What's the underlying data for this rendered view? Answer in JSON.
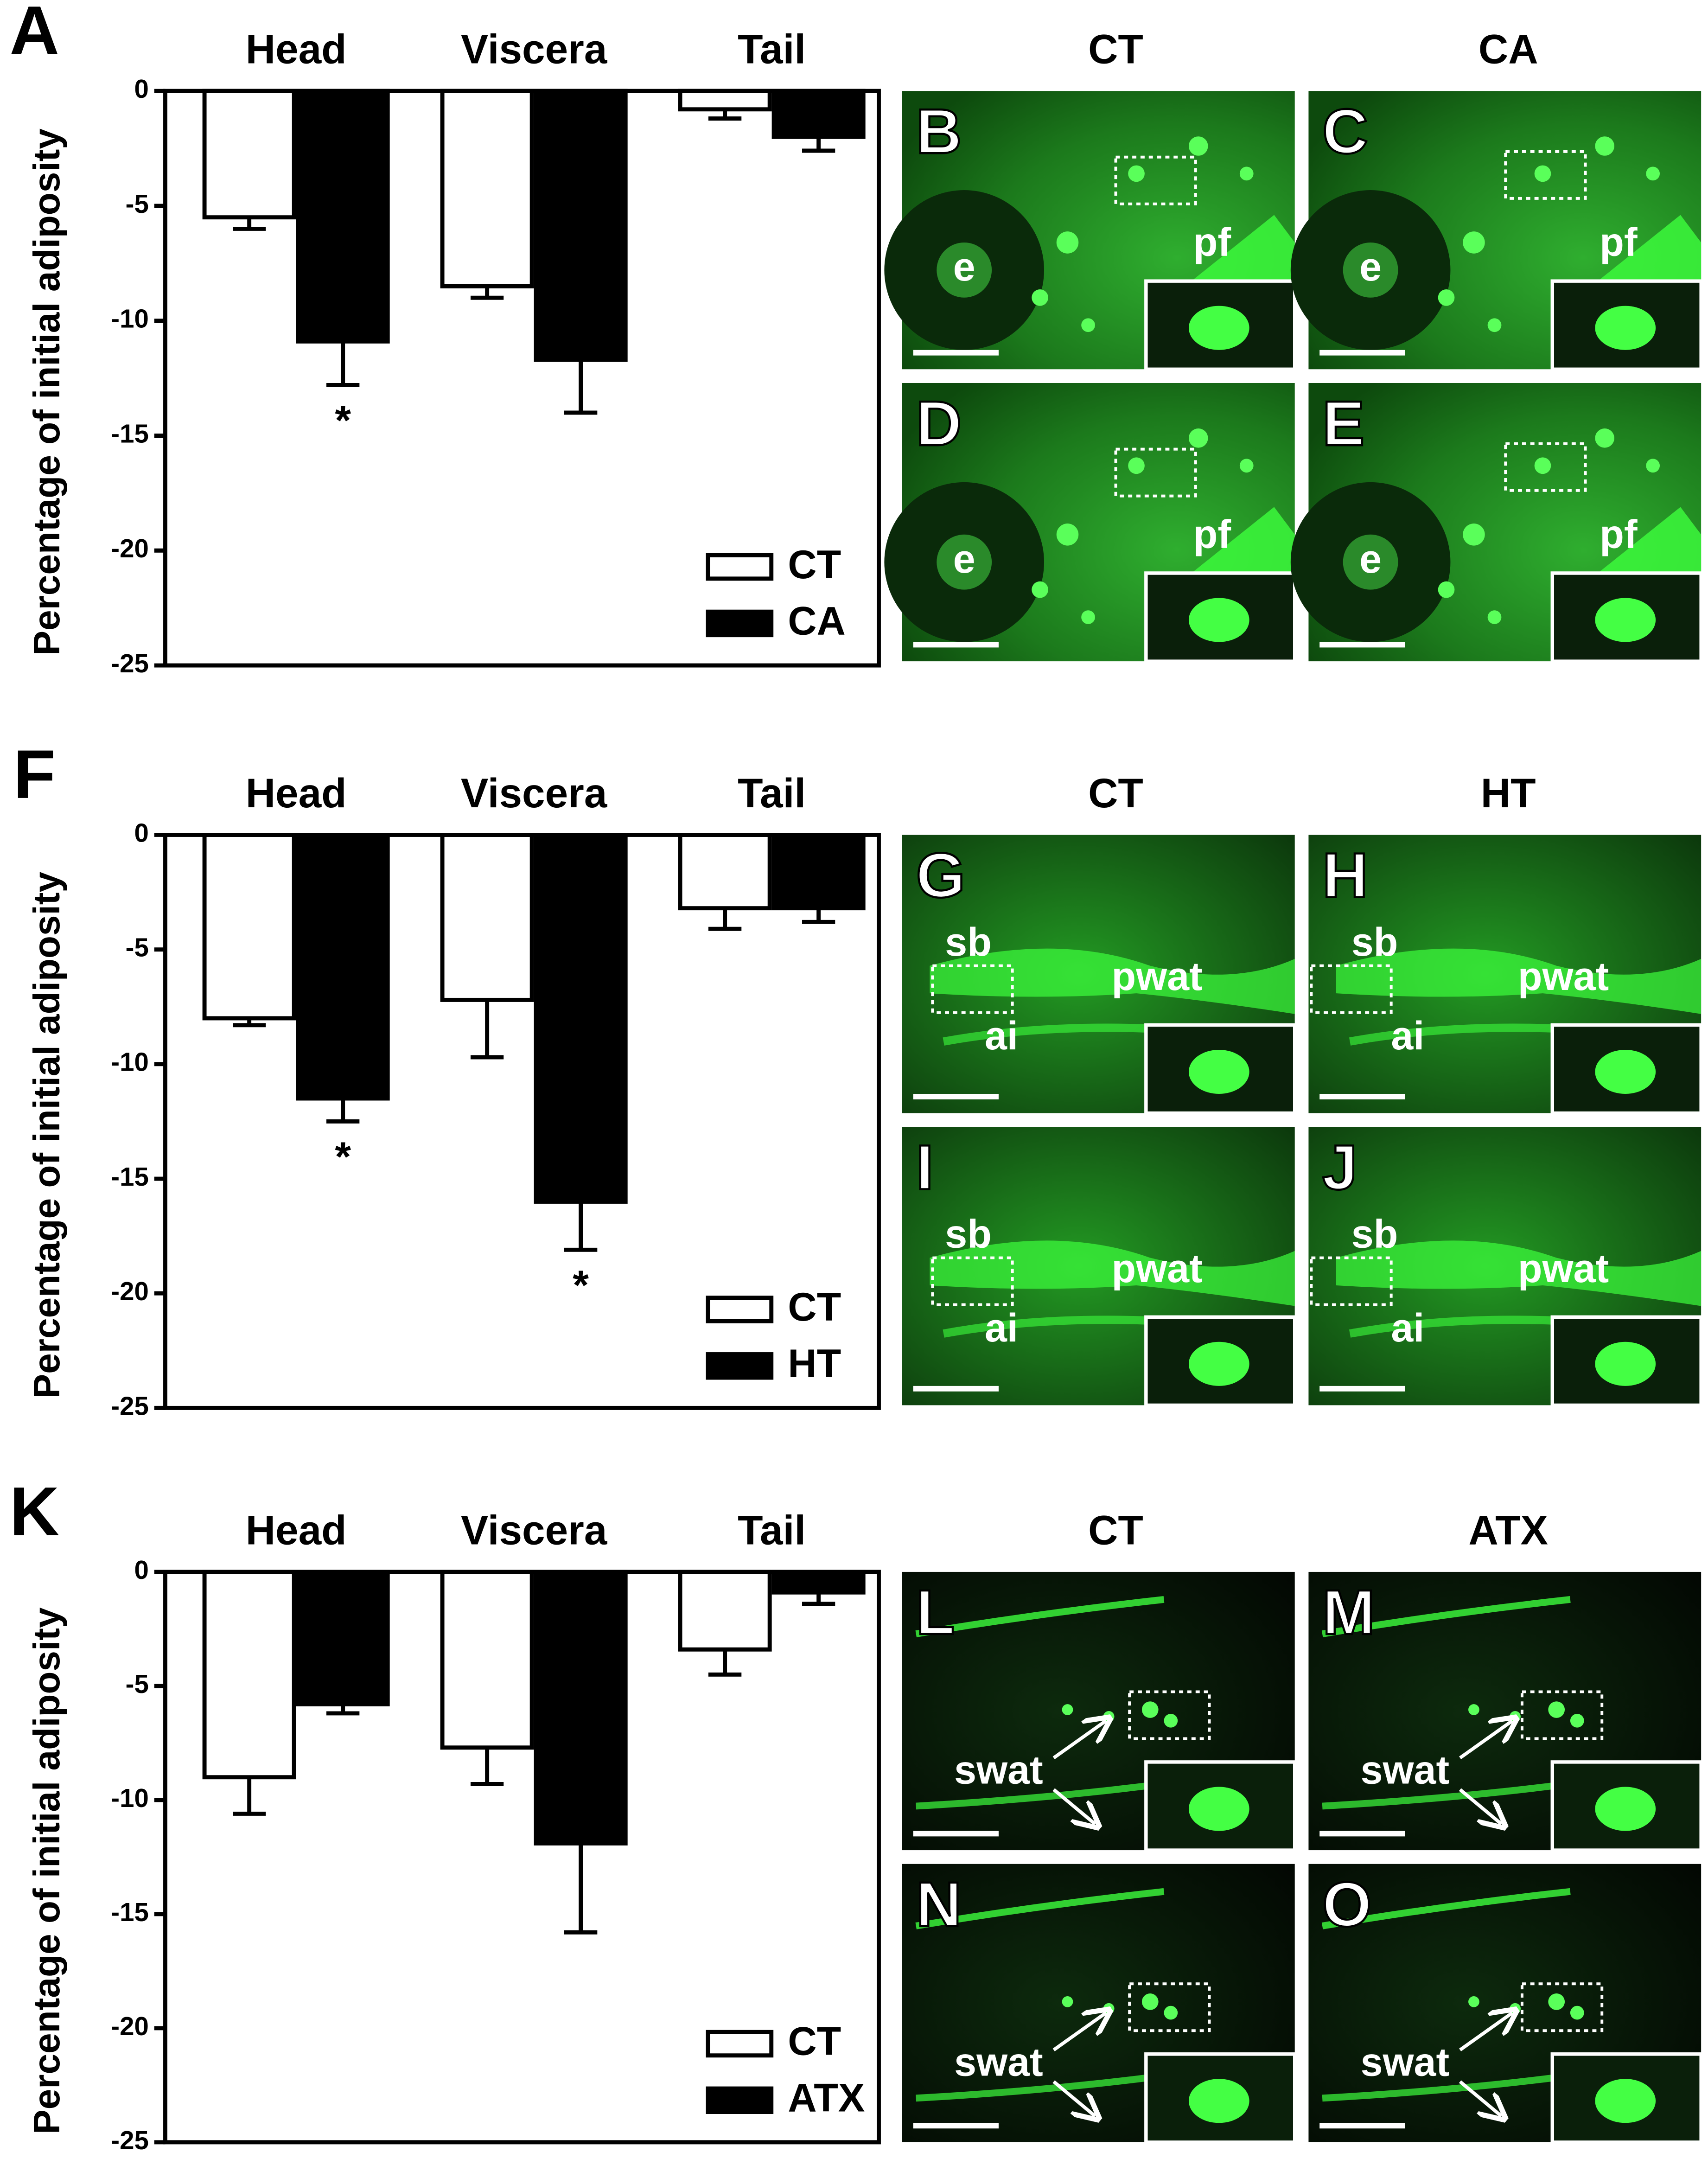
{
  "chart_data": [
    {
      "type": "bar",
      "panel": "A",
      "y_label": "Percentage of initial adiposity",
      "categories": [
        "Head",
        "Viscera",
        "Tail"
      ],
      "ylim": [
        -25,
        0
      ],
      "yticks": [
        0,
        -5,
        -10,
        -15,
        -20,
        -25
      ],
      "series": [
        {
          "name": "CT",
          "color": "#ffffff",
          "values": [
            -5.5,
            -8.5,
            -0.8
          ],
          "errors": [
            0.5,
            0.5,
            0.4
          ],
          "markers": [
            null,
            null,
            null
          ]
        },
        {
          "name": "CA",
          "color": "#000000",
          "values": [
            -10.9,
            -11.7,
            -2.0
          ],
          "errors": [
            1.9,
            2.3,
            0.6
          ],
          "markers": [
            "*",
            null,
            null
          ]
        }
      ]
    },
    {
      "type": "bar",
      "panel": "F",
      "y_label": "Percentage of initial adiposity",
      "categories": [
        "Head",
        "Viscera",
        "Tail"
      ],
      "ylim": [
        -25,
        0
      ],
      "yticks": [
        0,
        -5,
        -10,
        -15,
        -20,
        -25
      ],
      "series": [
        {
          "name": "CT",
          "color": "#ffffff",
          "values": [
            -8.0,
            -7.2,
            -3.2
          ],
          "errors": [
            0.3,
            2.5,
            0.9
          ],
          "markers": [
            null,
            null,
            null
          ]
        },
        {
          "name": "HT",
          "color": "#000000",
          "values": [
            -11.5,
            -16.0,
            -3.2
          ],
          "errors": [
            1.0,
            2.1,
            0.6
          ],
          "markers": [
            "*",
            "*",
            null
          ]
        }
      ]
    },
    {
      "type": "bar",
      "panel": "K",
      "y_label": "Percentage of initial adiposity",
      "categories": [
        "Head",
        "Viscera",
        "Tail"
      ],
      "ylim": [
        -25,
        0
      ],
      "yticks": [
        0,
        -5,
        -10,
        -15,
        -20,
        -25
      ],
      "series": [
        {
          "name": "CT",
          "color": "#ffffff",
          "values": [
            -9.0,
            -7.7,
            -3.4
          ],
          "errors": [
            1.6,
            1.6,
            1.1
          ],
          "markers": [
            null,
            null,
            null
          ]
        },
        {
          "name": "ATX",
          "color": "#000000",
          "values": [
            -5.8,
            -11.9,
            -0.9
          ],
          "errors": [
            0.4,
            3.9,
            0.5
          ],
          "markers": [
            null,
            null,
            null
          ]
        }
      ]
    }
  ],
  "image_panels": [
    {
      "headers": [
        "CT",
        "CA"
      ],
      "panels": [
        {
          "label": "B",
          "annotations": [
            "e",
            "pf"
          ]
        },
        {
          "label": "C",
          "annotations": [
            "e",
            "pf"
          ]
        },
        {
          "label": "D",
          "annotations": [
            "e",
            "pf"
          ]
        },
        {
          "label": "E",
          "annotations": [
            "e",
            "pf"
          ]
        }
      ]
    },
    {
      "headers": [
        "CT",
        "HT"
      ],
      "panels": [
        {
          "label": "G",
          "annotations": [
            "sb",
            "pwat",
            "ai"
          ]
        },
        {
          "label": "H",
          "annotations": [
            "sb",
            "pwat",
            "ai"
          ]
        },
        {
          "label": "I",
          "annotations": [
            "sb",
            "pwat",
            "ai"
          ]
        },
        {
          "label": "J",
          "annotations": [
            "sb",
            "pwat",
            "ai"
          ]
        }
      ]
    },
    {
      "headers": [
        "CT",
        "ATX"
      ],
      "panels": [
        {
          "label": "L",
          "annotations": [
            "swat"
          ]
        },
        {
          "label": "M",
          "annotations": [
            "swat"
          ]
        },
        {
          "label": "N",
          "annotations": [
            "swat"
          ]
        },
        {
          "label": "O",
          "annotations": [
            "swat"
          ]
        }
      ]
    }
  ]
}
